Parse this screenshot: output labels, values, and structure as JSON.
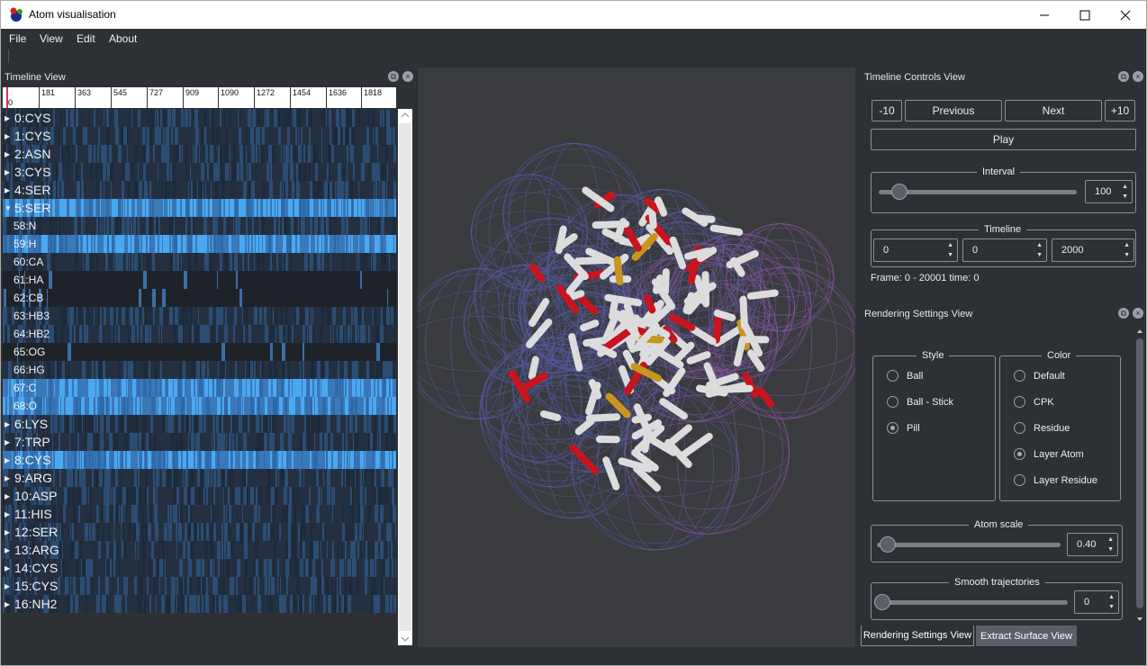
{
  "window": {
    "title": "Atom visualisation"
  },
  "menu": {
    "items": [
      "File",
      "View",
      "Edit",
      "About"
    ]
  },
  "timeline_view": {
    "title": "Timeline View",
    "ruler_ticks": [
      "0",
      "181",
      "363",
      "545",
      "727",
      "909",
      "1090",
      "1272",
      "1454",
      "1636",
      "1818"
    ],
    "ruler_zero": "0",
    "rows": [
      {
        "label": "0:CYS",
        "expander": true,
        "level": "residue"
      },
      {
        "label": "1:CYS",
        "expander": true,
        "level": "residue"
      },
      {
        "label": "2:ASN",
        "expander": true,
        "level": "residue"
      },
      {
        "label": "3:CYS",
        "expander": true,
        "level": "residue"
      },
      {
        "label": "4:SER",
        "expander": true,
        "level": "residue"
      },
      {
        "label": "5:SER",
        "expander": true,
        "expanded": true,
        "level": "residue"
      },
      {
        "label": "58:N",
        "level": "atom"
      },
      {
        "label": "59:H",
        "level": "atom"
      },
      {
        "label": "60:CA",
        "level": "atom"
      },
      {
        "label": "61:HA",
        "level": "atom"
      },
      {
        "label": "62:CB",
        "level": "atom"
      },
      {
        "label": "63:HB3",
        "level": "atom"
      },
      {
        "label": "64:HB2",
        "level": "atom"
      },
      {
        "label": "65:OG",
        "level": "atom"
      },
      {
        "label": "66:HG",
        "level": "atom"
      },
      {
        "label": "67:C",
        "level": "atom"
      },
      {
        "label": "68:O",
        "level": "atom"
      },
      {
        "label": "6:LYS",
        "expander": true,
        "level": "residue"
      },
      {
        "label": "7:TRP",
        "expander": true,
        "level": "residue"
      },
      {
        "label": "8:CYS",
        "expander": true,
        "level": "residue"
      },
      {
        "label": "9:ARG",
        "expander": true,
        "level": "residue"
      },
      {
        "label": "10:ASP",
        "expander": true,
        "level": "residue"
      },
      {
        "label": "11:HIS",
        "expander": true,
        "level": "residue"
      },
      {
        "label": "12:SER",
        "expander": true,
        "level": "residue"
      },
      {
        "label": "13:ARG",
        "expander": true,
        "level": "residue"
      },
      {
        "label": "14:CYS",
        "expander": true,
        "level": "residue"
      },
      {
        "label": "15:CYS",
        "expander": true,
        "level": "residue"
      },
      {
        "label": "16:NH2",
        "expander": true,
        "level": "residue"
      }
    ]
  },
  "timeline_controls": {
    "title": "Timeline Controls View",
    "minus10": "-10",
    "previous": "Previous",
    "next": "Next",
    "plus10": "+10",
    "play": "Play",
    "interval_label": "Interval",
    "interval_value": "100",
    "timeline_label": "Timeline",
    "timeline_start": "0",
    "timeline_current": "0",
    "timeline_end": "2000",
    "frame_info": "Frame: 0 - 20001 time: 0"
  },
  "rendering_settings": {
    "title": "Rendering Settings View",
    "style_label": "Style",
    "style_options": [
      {
        "label": "Ball",
        "checked": false
      },
      {
        "label": "Ball - Stick",
        "checked": false
      },
      {
        "label": "Pill",
        "checked": true
      }
    ],
    "color_label": "Color",
    "color_options": [
      {
        "label": "Default",
        "checked": false
      },
      {
        "label": "CPK",
        "checked": false
      },
      {
        "label": "Residue",
        "checked": false
      },
      {
        "label": "Layer Atom",
        "checked": true
      },
      {
        "label": "Layer Residue",
        "checked": false
      }
    ],
    "atom_scale_label": "Atom scale",
    "atom_scale_value": "0.40",
    "smooth_label": "Smooth trajectories",
    "smooth_value": "0"
  },
  "tabs": {
    "active": "Rendering Settings View",
    "inactive": "Extract Surface View"
  },
  "colors": {
    "accent": "#4aa8f0",
    "panel": "#2d3035",
    "viewport": "#3a3b3f"
  }
}
